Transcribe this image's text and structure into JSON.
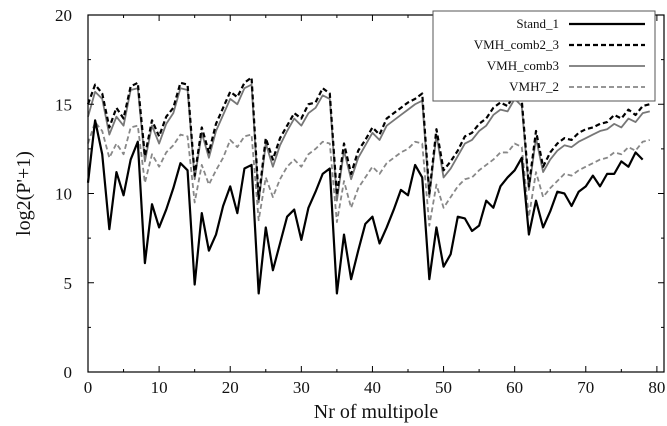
{
  "chart_data": {
    "type": "line",
    "xlabel": "Nr of multipole",
    "ylabel": "log2(P'+1)",
    "xlim": [
      0,
      81
    ],
    "ylim": [
      0,
      20
    ],
    "x_ticks": [
      0,
      10,
      20,
      30,
      40,
      50,
      60,
      70,
      80
    ],
    "y_ticks": [
      0,
      5,
      10,
      15,
      20
    ],
    "grid": false,
    "legend_position": "top-right",
    "series": [
      {
        "name": "Stand_1",
        "color": "#000000",
        "style": "solid",
        "values": [
          10.6,
          14.1,
          12.2,
          8.0,
          11.2,
          9.9,
          11.9,
          12.9,
          6.1,
          9.4,
          8.1,
          9.1,
          10.3,
          11.7,
          11.3,
          4.9,
          8.9,
          6.8,
          7.7,
          9.3,
          10.4,
          8.9,
          11.4,
          11.6,
          4.4,
          8.1,
          5.7,
          7.2,
          8.7,
          9.1,
          7.4,
          9.2,
          10.1,
          11.1,
          11.4,
          4.4,
          7.7,
          5.2,
          6.8,
          8.3,
          8.7,
          7.2,
          8.1,
          9.1,
          10.2,
          9.9,
          11.6,
          10.9,
          5.2,
          8.1,
          5.9,
          6.6,
          8.7,
          8.6,
          7.9,
          8.2,
          9.6,
          9.2,
          10.4,
          10.9,
          11.3,
          12.0,
          7.7,
          9.6,
          8.1,
          9.0,
          10.1,
          10.0,
          9.3,
          10.1,
          10.4,
          11.0,
          10.4,
          11.1,
          11.1,
          11.8,
          11.5,
          12.3,
          11.9
        ]
      },
      {
        "name": "VMH_comb2_3",
        "color": "#000000",
        "style": "dashed",
        "values": [
          15.0,
          16.1,
          15.6,
          13.7,
          14.8,
          14.2,
          16.0,
          16.2,
          12.1,
          14.1,
          13.2,
          14.3,
          14.8,
          16.2,
          16.1,
          11.0,
          13.7,
          12.3,
          13.9,
          14.8,
          15.7,
          15.4,
          16.2,
          16.5,
          9.7,
          13.1,
          11.9,
          13.1,
          13.8,
          14.5,
          14.2,
          15.0,
          15.1,
          15.9,
          15.6,
          9.9,
          12.8,
          11.1,
          12.4,
          13.0,
          13.7,
          13.3,
          14.2,
          14.5,
          14.8,
          15.1,
          15.3,
          15.6,
          10.0,
          13.6,
          11.3,
          11.8,
          12.4,
          13.2,
          13.4,
          13.9,
          14.2,
          14.8,
          15.1,
          14.9,
          15.6,
          15.2,
          10.4,
          13.5,
          11.5,
          12.3,
          12.8,
          13.1,
          13.0,
          13.4,
          13.6,
          13.7,
          13.9,
          14.0,
          14.4,
          14.2,
          14.7,
          14.4,
          14.9,
          15.0
        ]
      },
      {
        "name": "VMH_comb3",
        "color": "#777777",
        "style": "solid",
        "values": [
          14.3,
          15.7,
          15.3,
          13.3,
          14.3,
          13.8,
          15.8,
          15.9,
          11.8,
          13.8,
          12.8,
          13.9,
          14.5,
          15.9,
          15.8,
          10.8,
          13.4,
          12.0,
          13.5,
          14.4,
          15.3,
          15.0,
          15.9,
          16.1,
          9.5,
          12.8,
          11.5,
          12.7,
          13.5,
          14.2,
          13.8,
          14.5,
          14.8,
          15.5,
          15.3,
          9.6,
          12.4,
          10.8,
          12.0,
          12.7,
          13.4,
          13.0,
          13.8,
          14.1,
          14.4,
          14.7,
          15.0,
          15.2,
          9.8,
          13.3,
          10.9,
          11.4,
          12.1,
          12.8,
          13.0,
          13.5,
          13.8,
          14.4,
          14.7,
          14.6,
          15.3,
          14.9,
          10.2,
          13.1,
          11.2,
          11.9,
          12.4,
          12.7,
          12.6,
          12.9,
          13.1,
          13.3,
          13.5,
          13.6,
          13.9,
          13.7,
          14.2,
          14.0,
          14.5,
          14.6
        ]
      },
      {
        "name": "VMH7_2",
        "color": "#888888",
        "style": "dashed",
        "values": [
          12.8,
          14.0,
          13.5,
          12.0,
          12.8,
          12.2,
          13.7,
          13.8,
          10.6,
          12.2,
          11.5,
          12.3,
          12.7,
          13.3,
          13.2,
          9.5,
          11.6,
          10.5,
          11.3,
          12.0,
          13.0,
          12.6,
          13.2,
          13.3,
          8.5,
          10.9,
          9.8,
          10.8,
          11.5,
          11.9,
          11.5,
          12.2,
          12.5,
          12.9,
          12.8,
          8.4,
          10.7,
          9.2,
          10.3,
          10.9,
          11.5,
          11.1,
          11.7,
          12.0,
          12.3,
          12.5,
          12.9,
          12.8,
          8.2,
          10.5,
          9.2,
          9.8,
          10.4,
          10.8,
          10.9,
          11.3,
          11.6,
          11.9,
          12.3,
          12.3,
          12.8,
          12.6,
          8.7,
          11.2,
          9.8,
          10.3,
          10.7,
          11.1,
          11.0,
          11.3,
          11.5,
          11.7,
          11.9,
          12.0,
          12.3,
          12.2,
          12.6,
          12.4,
          12.9,
          13.0
        ]
      }
    ]
  }
}
